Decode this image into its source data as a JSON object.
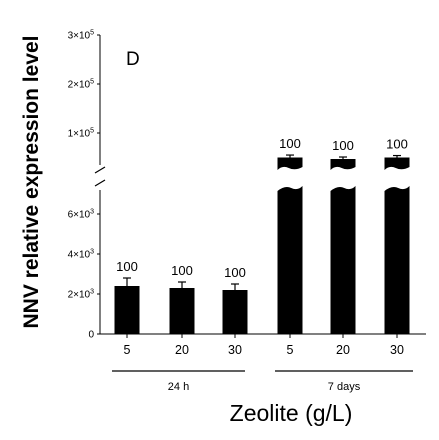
{
  "chart_data": {
    "type": "bar",
    "panel_label": "D",
    "title": "",
    "ylabel": "NNV relative expression level",
    "xlabel": "Zeolite (g/L)",
    "categories": [
      "5",
      "20",
      "30",
      "5",
      "20",
      "30"
    ],
    "groups": [
      {
        "label": "24 h",
        "categories": [
          "5",
          "20",
          "30"
        ]
      },
      {
        "label": "7 days",
        "categories": [
          "5",
          "20",
          "30"
        ]
      }
    ],
    "values": [
      2400,
      2300,
      2200,
      50000,
      47000,
      50000
    ],
    "errors": [
      400,
      300,
      300,
      5000,
      4000,
      4000
    ],
    "data_labels": [
      "100",
      "100",
      "100",
      "100",
      "100",
      "100"
    ],
    "y_axis_broken": true,
    "lower_segment": {
      "ylim": [
        0,
        7000
      ],
      "ticks": [
        {
          "value": 0,
          "base": "0",
          "exp": ""
        },
        {
          "value": 2000,
          "base": "2×10",
          "exp": "3"
        },
        {
          "value": 4000,
          "base": "4×10",
          "exp": "3"
        },
        {
          "value": 6000,
          "base": "6×10",
          "exp": "3"
        }
      ]
    },
    "upper_segment": {
      "ylim": [
        0,
        300000
      ],
      "ticks": [
        {
          "value": 100000,
          "base": "1×10",
          "exp": "5"
        },
        {
          "value": 200000,
          "base": "2×10",
          "exp": "5"
        },
        {
          "value": 300000,
          "base": "3×10",
          "exp": "5"
        }
      ]
    },
    "bar_color": "#000000",
    "grid": false,
    "legend": "none"
  }
}
